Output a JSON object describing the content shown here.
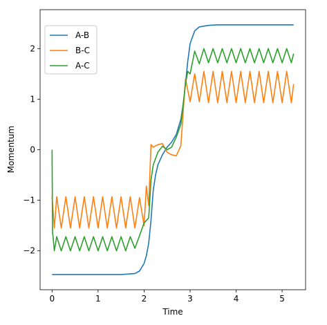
{
  "chart_data": {
    "type": "line",
    "xlabel": "Time",
    "ylabel": "Momentum",
    "xlim": [
      -0.26,
      5.51
    ],
    "ylim": [
      -2.77,
      2.77
    ],
    "xticks": [
      0,
      1,
      2,
      3,
      4,
      5
    ],
    "yticks": [
      -2,
      -1,
      0,
      1,
      2
    ],
    "xtick_labels": [
      "0",
      "1",
      "2",
      "3",
      "4",
      "5"
    ],
    "ytick_labels": [
      "−2",
      "−1",
      "0",
      "1",
      "2"
    ],
    "grid": false,
    "legend_position": "top-left",
    "series": [
      {
        "name": "A-B",
        "color": "#1f77b4",
        "x": [
          0,
          0.5,
          1.0,
          1.5,
          1.8,
          1.9,
          2.0,
          2.05,
          2.1,
          2.15,
          2.2,
          2.25,
          2.3,
          2.4,
          2.5,
          2.6,
          2.7,
          2.8,
          2.85,
          2.9,
          2.95,
          3.0,
          3.1,
          3.2,
          3.4,
          3.6,
          4.0,
          4.5,
          5.0,
          5.25
        ],
        "y": [
          -2.47,
          -2.47,
          -2.47,
          -2.47,
          -2.45,
          -2.4,
          -2.25,
          -2.1,
          -1.85,
          -1.4,
          -0.8,
          -0.5,
          -0.3,
          -0.1,
          0.05,
          0.15,
          0.3,
          0.6,
          0.9,
          1.3,
          1.75,
          2.1,
          2.35,
          2.43,
          2.46,
          2.47,
          2.47,
          2.47,
          2.47,
          2.47
        ]
      },
      {
        "name": "B-C",
        "color": "#ff7f0e",
        "x": [
          0,
          0.05,
          0.1,
          0.2,
          0.3,
          0.4,
          0.5,
          0.6,
          0.7,
          0.8,
          0.9,
          1.0,
          1.1,
          1.2,
          1.3,
          1.4,
          1.5,
          1.6,
          1.7,
          1.8,
          1.9,
          2.0,
          2.05,
          2.1,
          2.15,
          2.2,
          2.3,
          2.4,
          2.5,
          2.6,
          2.7,
          2.8,
          2.9,
          3.0,
          3.1,
          3.2,
          3.3,
          3.4,
          3.5,
          3.6,
          3.7,
          3.8,
          3.9,
          4.0,
          4.1,
          4.2,
          4.3,
          4.4,
          4.5,
          4.6,
          4.7,
          4.8,
          4.9,
          5.0,
          5.1,
          5.2,
          5.25
        ],
        "y": [
          -0.92,
          -1.55,
          -0.93,
          -1.55,
          -0.93,
          -1.55,
          -0.93,
          -1.55,
          -0.93,
          -1.55,
          -0.93,
          -1.55,
          -0.93,
          -1.55,
          -0.93,
          -1.55,
          -0.93,
          -1.55,
          -0.93,
          -1.55,
          -0.95,
          -1.5,
          -0.72,
          -1.1,
          0.1,
          0.05,
          0.1,
          0.12,
          -0.05,
          -0.1,
          -0.12,
          0.08,
          1.4,
          0.95,
          1.5,
          0.95,
          1.55,
          0.93,
          1.55,
          0.93,
          1.55,
          0.93,
          1.55,
          0.93,
          1.55,
          0.93,
          1.55,
          0.93,
          1.55,
          0.93,
          1.55,
          0.93,
          1.55,
          0.93,
          1.55,
          0.93,
          1.3
        ]
      },
      {
        "name": "A-C",
        "color": "#2ca02c",
        "x": [
          0,
          0.01,
          0.02,
          0.05,
          0.1,
          0.2,
          0.3,
          0.4,
          0.5,
          0.6,
          0.7,
          0.8,
          0.9,
          1.0,
          1.1,
          1.2,
          1.3,
          1.4,
          1.5,
          1.6,
          1.7,
          1.8,
          1.9,
          2.0,
          2.1,
          2.15,
          2.2,
          2.3,
          2.4,
          2.5,
          2.6,
          2.7,
          2.8,
          2.9,
          2.95,
          3.0,
          3.1,
          3.2,
          3.3,
          3.4,
          3.5,
          3.6,
          3.7,
          3.8,
          3.9,
          4.0,
          4.1,
          4.2,
          4.3,
          4.4,
          4.5,
          4.6,
          4.7,
          4.8,
          4.9,
          5.0,
          5.1,
          5.2,
          5.25
        ],
        "y": [
          0.0,
          -1.65,
          -1.7,
          -2.0,
          -1.72,
          -2.0,
          -1.72,
          -2.0,
          -1.72,
          -2.0,
          -1.72,
          -2.0,
          -1.72,
          -2.0,
          -1.72,
          -2.0,
          -1.72,
          -2.0,
          -1.72,
          -2.0,
          -1.72,
          -1.95,
          -1.7,
          -1.45,
          -1.35,
          -0.6,
          -0.3,
          -0.05,
          0.07,
          0.0,
          0.05,
          0.25,
          0.5,
          1.3,
          1.55,
          1.5,
          1.95,
          1.7,
          2.0,
          1.72,
          2.0,
          1.72,
          2.0,
          1.72,
          2.0,
          1.72,
          2.0,
          1.72,
          2.0,
          1.72,
          2.0,
          1.72,
          2.0,
          1.72,
          2.0,
          1.72,
          2.0,
          1.72,
          1.9
        ]
      }
    ]
  }
}
